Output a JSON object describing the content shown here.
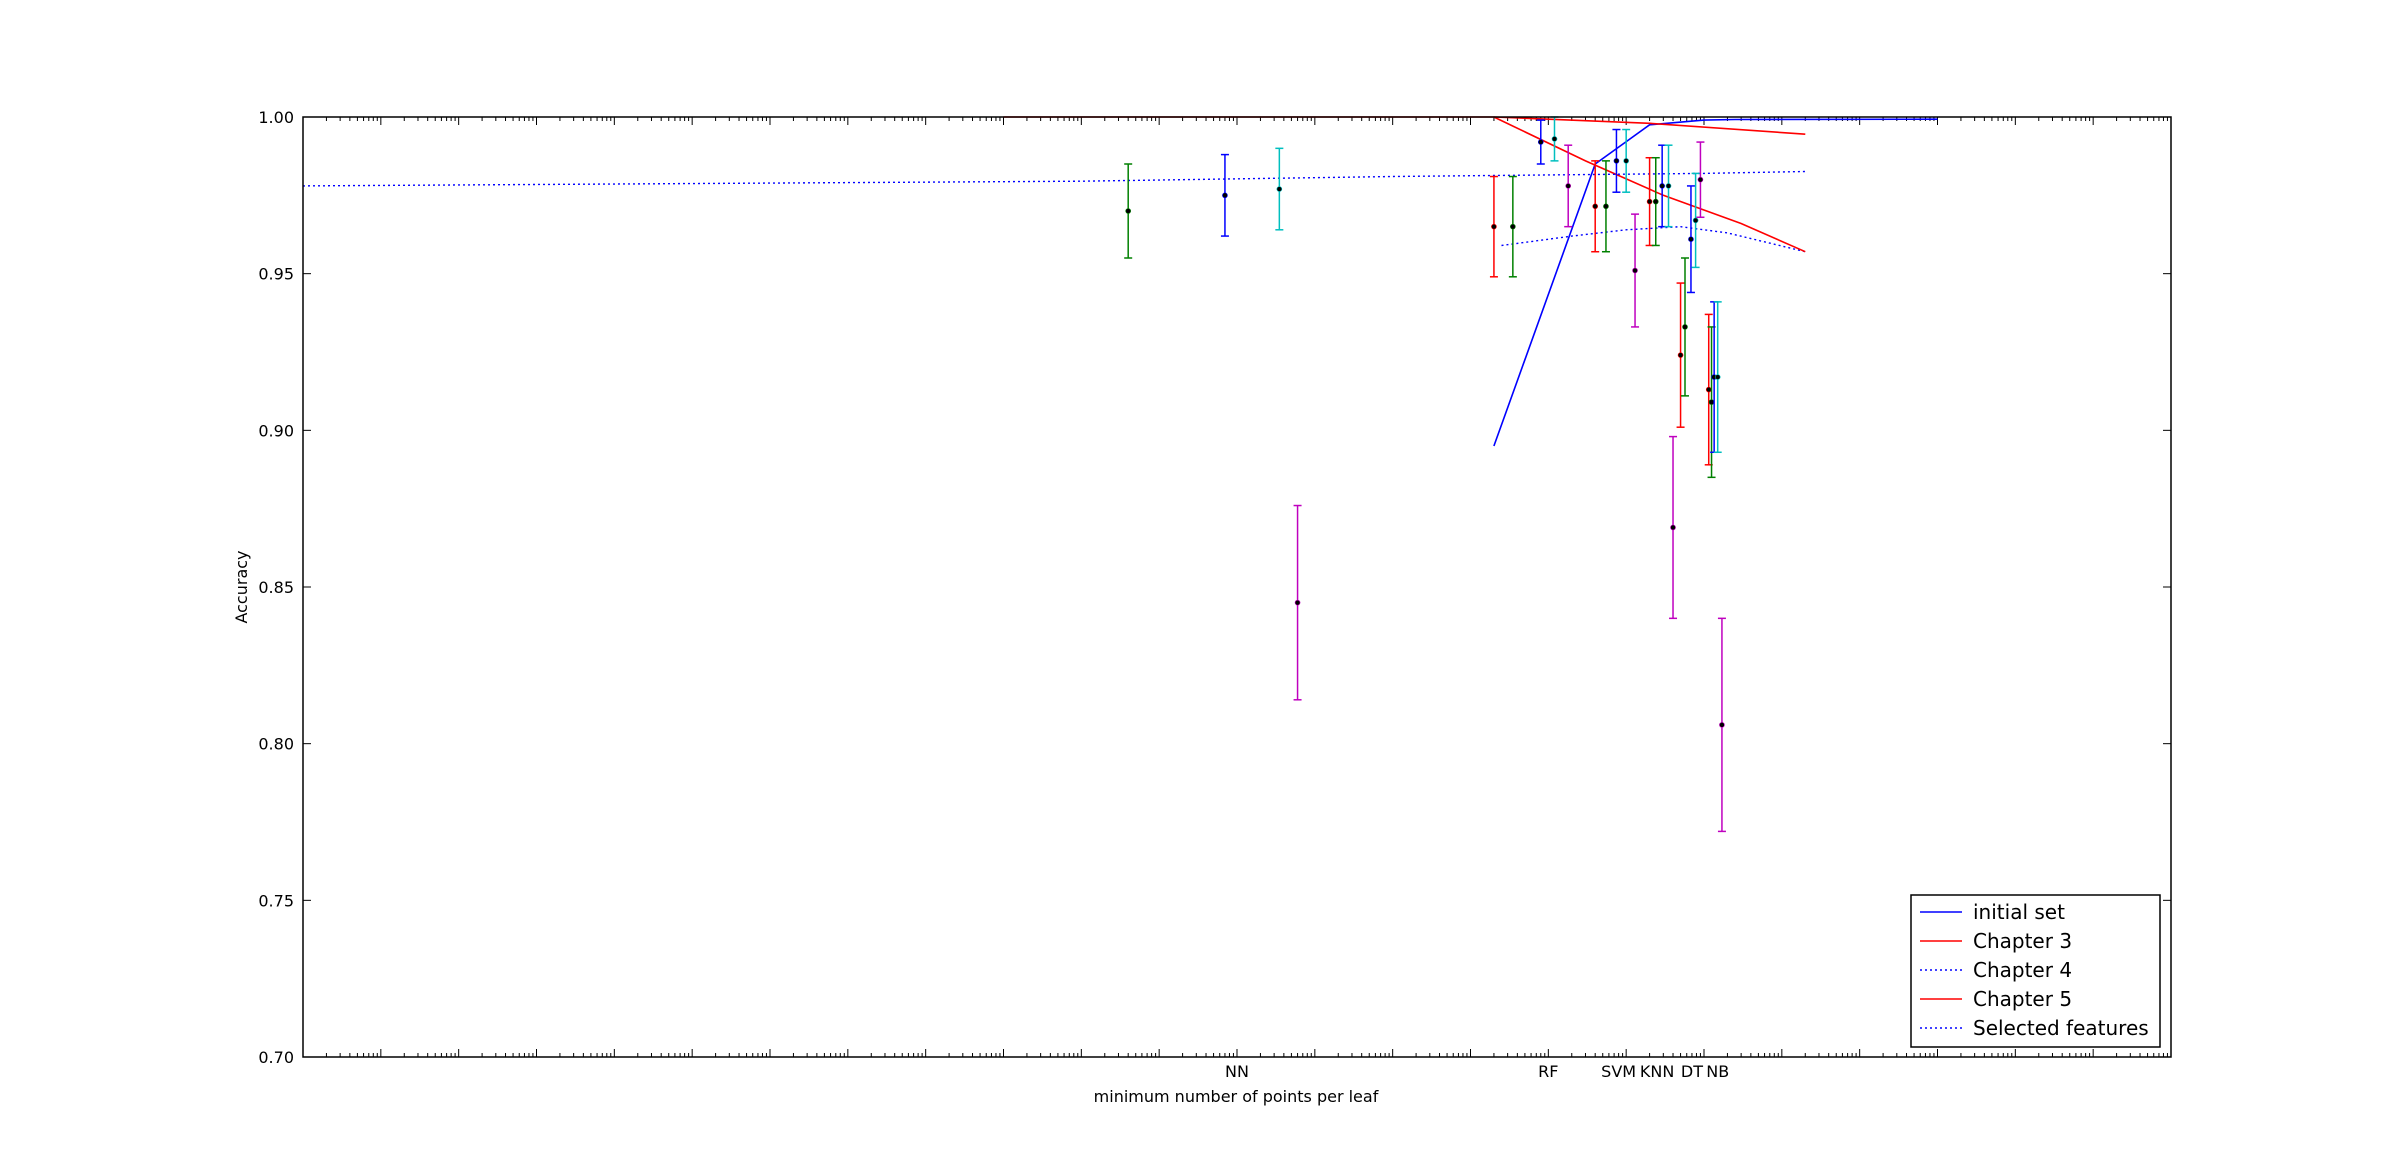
{
  "chart_data": {
    "type": "scatter",
    "title": "",
    "xlabel": "minimum number of points per leaf",
    "ylabel": "Accuracy",
    "x_scale": "log",
    "grid": false,
    "legend_position": "lower-right",
    "xlim_decades": [
      -14,
      10
    ],
    "ylim": [
      0.7,
      1.0
    ],
    "y_ticks": [
      "0.70",
      "0.75",
      "0.80",
      "0.85",
      "0.90",
      "0.95",
      "1.00"
    ],
    "x_tick_labels": [
      {
        "label": "NN",
        "x": 0.01
      },
      {
        "label": "RF",
        "x": 100
      },
      {
        "label": "SVM",
        "x": 800
      },
      {
        "label": "KNN",
        "x": 2500
      },
      {
        "label": "DT",
        "x": 7000
      },
      {
        "label": "NB",
        "x": 15000
      }
    ],
    "legend": [
      {
        "name": "initial set",
        "color": "#0000ff",
        "style": "solid"
      },
      {
        "name": "Chapter 3",
        "color": "#ff0000",
        "style": "solid"
      },
      {
        "name": "Chapter 4",
        "color": "#0000ff",
        "style": "dotted"
      },
      {
        "name": "Chapter 5",
        "color": "#ff0000",
        "style": "solid"
      },
      {
        "name": "Selected features",
        "color": "#0000ff",
        "style": "dotted"
      }
    ],
    "series": [
      {
        "name": "initial set",
        "color": "#0000ff",
        "style": "solid",
        "x": [
          20,
          400,
          2000,
          10000,
          25000,
          10000000
        ],
        "y": [
          0.895,
          0.985,
          0.9975,
          0.999,
          0.9992,
          0.9993
        ]
      },
      {
        "name": "Chapter 3",
        "color": "#ff0000",
        "style": "solid",
        "x": [
          1e-05,
          20,
          2000,
          200000
        ],
        "y": [
          1.0,
          1.0,
          0.998,
          0.9945
        ]
      },
      {
        "name": "Chapter 4",
        "color": "#0000ff",
        "style": "dotted",
        "x": [
          25,
          200,
          1000,
          5000,
          20000,
          200000
        ],
        "y": [
          0.959,
          0.962,
          0.964,
          0.965,
          0.963,
          0.957
        ]
      },
      {
        "name": "Chapter 5",
        "color": "#ff0000",
        "style": "solid",
        "x": [
          20,
          300,
          3000,
          30000,
          200000
        ],
        "y": [
          1.0,
          0.986,
          0.975,
          0.966,
          0.957
        ]
      },
      {
        "name": "Selected features",
        "color": "#0000ff",
        "style": "dotted",
        "x": [
          1e-14,
          0.0001,
          1,
          10000,
          200000
        ],
        "y": [
          0.978,
          0.9795,
          0.981,
          0.982,
          0.9826
        ]
      }
    ],
    "error_bars": [
      {
        "x": 0.0004,
        "y": 0.97,
        "err": 0.015,
        "color": "#008000"
      },
      {
        "x": 0.007,
        "y": 0.975,
        "err": 0.013,
        "color": "#0000ff"
      },
      {
        "x": 0.035,
        "y": 0.977,
        "err": 0.013,
        "color": "#00bfbf"
      },
      {
        "x": 0.06,
        "y": 0.845,
        "err": 0.031,
        "color": "#bf00bf"
      },
      {
        "x": 20,
        "y": 0.965,
        "err": 0.016,
        "color": "#ff0000"
      },
      {
        "x": 35,
        "y": 0.965,
        "err": 0.016,
        "color": "#008000"
      },
      {
        "x": 80,
        "y": 0.992,
        "err": 0.007,
        "color": "#0000ff"
      },
      {
        "x": 120,
        "y": 0.993,
        "err": 0.007,
        "color": "#00bfbf"
      },
      {
        "x": 180,
        "y": 0.978,
        "err": 0.013,
        "color": "#bf00bf"
      },
      {
        "x": 400,
        "y": 0.9715,
        "err": 0.0145,
        "color": "#ff0000"
      },
      {
        "x": 550,
        "y": 0.9715,
        "err": 0.0145,
        "color": "#008000"
      },
      {
        "x": 750,
        "y": 0.986,
        "err": 0.01,
        "color": "#0000ff"
      },
      {
        "x": 1000,
        "y": 0.986,
        "err": 0.01,
        "color": "#00bfbf"
      },
      {
        "x": 1300,
        "y": 0.951,
        "err": 0.018,
        "color": "#bf00bf"
      },
      {
        "x": 2000,
        "y": 0.973,
        "err": 0.014,
        "color": "#ff0000"
      },
      {
        "x": 2400,
        "y": 0.973,
        "err": 0.014,
        "color": "#008000"
      },
      {
        "x": 2900,
        "y": 0.978,
        "err": 0.013,
        "color": "#0000ff"
      },
      {
        "x": 3500,
        "y": 0.978,
        "err": 0.013,
        "color": "#00bfbf"
      },
      {
        "x": 4000,
        "y": 0.869,
        "err": 0.029,
        "color": "#bf00bf"
      },
      {
        "x": 5000,
        "y": 0.924,
        "err": 0.023,
        "color": "#ff0000"
      },
      {
        "x": 5700,
        "y": 0.933,
        "err": 0.022,
        "color": "#008000"
      },
      {
        "x": 6800,
        "y": 0.961,
        "err": 0.017,
        "color": "#0000ff"
      },
      {
        "x": 7800,
        "y": 0.967,
        "err": 0.015,
        "color": "#00bfbf"
      },
      {
        "x": 9000,
        "y": 0.98,
        "err": 0.012,
        "color": "#bf00bf"
      },
      {
        "x": 11500,
        "y": 0.913,
        "err": 0.024,
        "color": "#ff0000"
      },
      {
        "x": 12500,
        "y": 0.909,
        "err": 0.024,
        "color": "#008000"
      },
      {
        "x": 13500,
        "y": 0.917,
        "err": 0.024,
        "color": "#0000ff"
      },
      {
        "x": 15000,
        "y": 0.917,
        "err": 0.024,
        "color": "#00bfbf"
      },
      {
        "x": 17000,
        "y": 0.806,
        "err": 0.034,
        "color": "#bf00bf"
      }
    ]
  }
}
